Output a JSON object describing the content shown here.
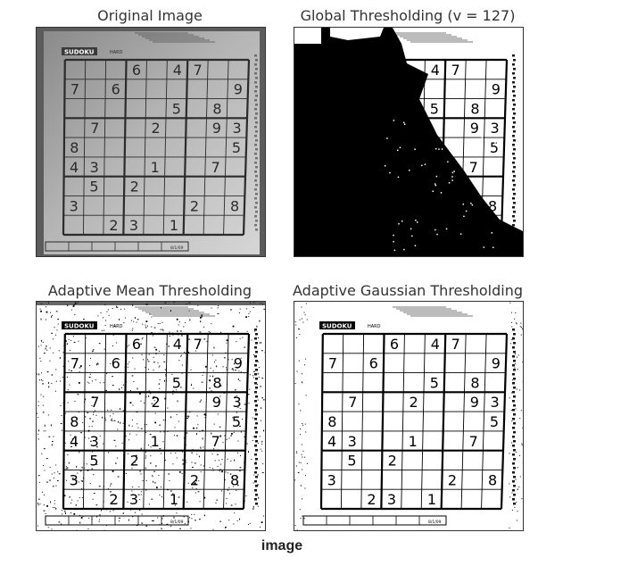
{
  "panels": [
    {
      "title": "Original Image"
    },
    {
      "title": "Global Thresholding (v = 127)"
    },
    {
      "title": "Adaptive Mean Thresholding"
    },
    {
      "title": "Adaptive Gaussian Thresholding"
    }
  ],
  "caption": "image",
  "sudoku": {
    "header": "SUDOKU",
    "difficulty": "HARD",
    "footer": "8/1/09",
    "cells": [
      {
        "r": 0,
        "c": 3,
        "v": "6"
      },
      {
        "r": 0,
        "c": 5,
        "v": "4"
      },
      {
        "r": 0,
        "c": 6,
        "v": "7"
      },
      {
        "r": 1,
        "c": 0,
        "v": "7"
      },
      {
        "r": 1,
        "c": 2,
        "v": "6"
      },
      {
        "r": 1,
        "c": 8,
        "v": "9"
      },
      {
        "r": 2,
        "c": 5,
        "v": "5"
      },
      {
        "r": 2,
        "c": 7,
        "v": "8"
      },
      {
        "r": 3,
        "c": 1,
        "v": "7"
      },
      {
        "r": 3,
        "c": 4,
        "v": "2"
      },
      {
        "r": 3,
        "c": 7,
        "v": "9"
      },
      {
        "r": 3,
        "c": 8,
        "v": "3"
      },
      {
        "r": 4,
        "c": 0,
        "v": "8"
      },
      {
        "r": 4,
        "c": 8,
        "v": "5"
      },
      {
        "r": 5,
        "c": 0,
        "v": "4"
      },
      {
        "r": 5,
        "c": 1,
        "v": "3"
      },
      {
        "r": 5,
        "c": 4,
        "v": "1"
      },
      {
        "r": 5,
        "c": 7,
        "v": "7"
      },
      {
        "r": 6,
        "c": 1,
        "v": "5"
      },
      {
        "r": 6,
        "c": 3,
        "v": "2"
      },
      {
        "r": 7,
        "c": 0,
        "v": "3"
      },
      {
        "r": 7,
        "c": 6,
        "v": "2"
      },
      {
        "r": 7,
        "c": 8,
        "v": "8"
      },
      {
        "r": 8,
        "c": 2,
        "v": "2"
      },
      {
        "r": 8,
        "c": 3,
        "v": "3"
      },
      {
        "r": 8,
        "c": 5,
        "v": "1"
      }
    ]
  }
}
